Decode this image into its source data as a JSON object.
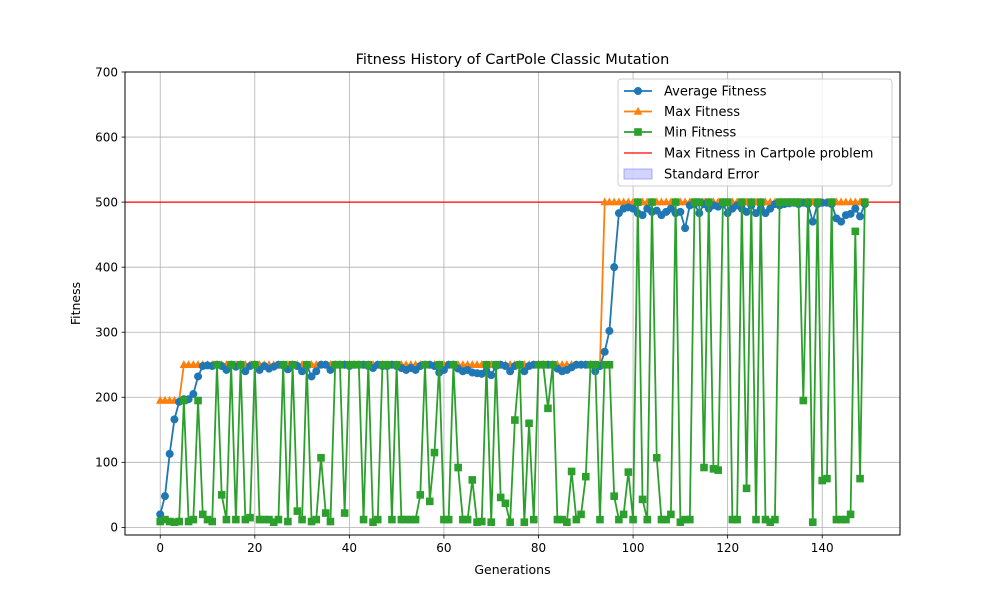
{
  "chart_data": {
    "type": "line",
    "title": "Fitness History of CartPole Classic Mutation",
    "xlabel": "Generations",
    "ylabel": "Fitness",
    "xlim": [
      -7.45,
      156.45
    ],
    "ylim": [
      -11.7,
      700
    ],
    "xticks": [
      0,
      20,
      40,
      60,
      80,
      100,
      120,
      140
    ],
    "yticks": [
      0,
      100,
      200,
      300,
      400,
      500,
      600,
      700
    ],
    "grid": true,
    "legend_position": "top-right",
    "reference_line": {
      "name": "Max Fitness in Cartpole problem",
      "y": 500,
      "color": "#ff0000"
    },
    "band_legend": {
      "name": "Standard Error",
      "color": "#8080ff"
    },
    "series": [
      {
        "name": "Average Fitness",
        "color": "#1f77b4",
        "marker": "circle",
        "values": [
          20,
          48,
          113,
          166,
          193,
          197,
          197,
          205,
          232,
          248,
          249,
          248,
          250,
          248,
          242,
          250,
          247,
          250,
          240,
          248,
          250,
          242,
          248,
          244,
          247,
          250,
          249,
          243,
          250,
          248,
          240,
          249,
          232,
          240,
          250,
          250,
          242,
          250,
          250,
          250,
          248,
          250,
          250,
          250,
          248,
          245,
          250,
          248,
          248,
          250,
          248,
          245,
          242,
          245,
          242,
          248,
          250,
          250,
          248,
          238,
          242,
          250,
          250,
          244,
          240,
          242,
          238,
          237,
          236,
          240,
          234,
          248,
          250,
          248,
          240,
          248,
          250,
          240,
          248,
          250,
          250,
          250,
          250,
          250,
          244,
          240,
          242,
          246,
          250,
          250,
          250,
          250,
          240,
          248,
          270,
          302,
          400,
          483,
          490,
          492,
          490,
          483,
          480,
          490,
          485,
          487,
          480,
          485,
          490,
          483,
          485,
          460,
          495,
          497,
          483,
          497,
          490,
          495,
          493,
          497,
          483,
          490,
          495,
          490,
          485,
          495,
          483,
          490,
          483,
          490,
          497,
          495,
          497,
          498,
          499,
          497,
          499,
          497,
          470,
          497,
          499,
          499,
          497,
          475,
          470,
          480,
          482,
          490,
          478,
          497
        ]
      },
      {
        "name": "Max Fitness",
        "color": "#ff7f0e",
        "marker": "triangle",
        "values": [
          195,
          195,
          195,
          195,
          195,
          250,
          250,
          250,
          250,
          250,
          250,
          250,
          250,
          250,
          250,
          250,
          250,
          250,
          250,
          250,
          250,
          250,
          250,
          250,
          250,
          250,
          250,
          250,
          250,
          250,
          250,
          250,
          250,
          250,
          250,
          250,
          250,
          250,
          250,
          250,
          250,
          250,
          250,
          250,
          250,
          250,
          250,
          250,
          250,
          250,
          250,
          250,
          250,
          250,
          250,
          250,
          250,
          250,
          250,
          250,
          250,
          250,
          250,
          250,
          250,
          250,
          250,
          250,
          250,
          250,
          250,
          250,
          250,
          250,
          250,
          250,
          250,
          250,
          250,
          250,
          250,
          250,
          250,
          250,
          250,
          250,
          250,
          250,
          250,
          250,
          250,
          250,
          250,
          250,
          500,
          500,
          500,
          500,
          500,
          500,
          500,
          500,
          500,
          500,
          500,
          500,
          500,
          500,
          500,
          500,
          500,
          500,
          500,
          500,
          500,
          500,
          500,
          500,
          500,
          500,
          500,
          500,
          500,
          500,
          500,
          500,
          500,
          500,
          500,
          500,
          500,
          500,
          500,
          500,
          500,
          500,
          500,
          500,
          500,
          500,
          500,
          500,
          500,
          500,
          500,
          500,
          500,
          500,
          500,
          500
        ]
      },
      {
        "name": "Min Fitness",
        "color": "#2ca02c",
        "marker": "square",
        "values": [
          9,
          12,
          9,
          8,
          9,
          195,
          9,
          12,
          195,
          20,
          12,
          9,
          250,
          50,
          12,
          250,
          12,
          250,
          12,
          15,
          250,
          12,
          12,
          12,
          8,
          12,
          250,
          9,
          250,
          25,
          12,
          250,
          9,
          12,
          107,
          22,
          9,
          250,
          250,
          22,
          250,
          250,
          250,
          12,
          250,
          8,
          12,
          250,
          250,
          12,
          250,
          12,
          12,
          12,
          12,
          50,
          250,
          40,
          115,
          250,
          12,
          12,
          250,
          92,
          12,
          12,
          73,
          8,
          9,
          250,
          8,
          250,
          46,
          37,
          8,
          165,
          250,
          8,
          160,
          12,
          250,
          250,
          183,
          250,
          12,
          12,
          8,
          86,
          12,
          20,
          78,
          250,
          250,
          12,
          250,
          250,
          48,
          12,
          20,
          85,
          12,
          500,
          43,
          12,
          500,
          107,
          12,
          12,
          20,
          500,
          8,
          12,
          12,
          500,
          500,
          92,
          500,
          90,
          88,
          500,
          500,
          12,
          12,
          500,
          60,
          500,
          12,
          500,
          12,
          8,
          12,
          500,
          500,
          500,
          500,
          500,
          195,
          500,
          8,
          500,
          72,
          75,
          500,
          12,
          12,
          12,
          20,
          455,
          75,
          500
        ]
      }
    ]
  }
}
